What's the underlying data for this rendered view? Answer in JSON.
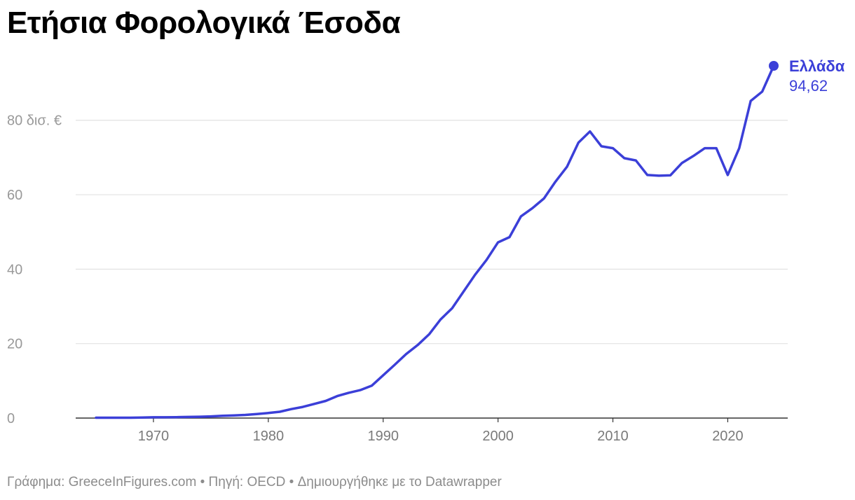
{
  "title": "Ετήσια Φορολογικά Έσοδα",
  "footer": {
    "chart_credit": "Γράφημα: GreeceInFigures.com",
    "sep": " • ",
    "source": "Πηγή: OECD",
    "made_with": "Δημιουργήθηκε με το Datawrapper"
  },
  "colors": {
    "line": "#3b3fd8",
    "grid": "#e2e2e2",
    "axis": "#333333",
    "tick_text": "#999999",
    "year_text": "#7a7a7a"
  },
  "chart_data": {
    "type": "line",
    "title": "Ετήσια Φορολογικά Έσοδα",
    "xlabel": "",
    "ylabel": "",
    "xlim": [
      1964,
      2024
    ],
    "ylim": [
      0,
      94.62
    ],
    "y_ticks": [
      0,
      20,
      40,
      60,
      80
    ],
    "y_tick_labels": [
      "0",
      "20",
      "40",
      "60",
      "80 δισ. €"
    ],
    "x_ticks": [
      1970,
      1980,
      1990,
      2000,
      2010,
      2020
    ],
    "x_tick_labels": [
      "1970",
      "1980",
      "1990",
      "2000",
      "2010",
      "2020"
    ],
    "grid": true,
    "series": [
      {
        "name": "Ελλάδα",
        "end_label": "94,62",
        "x": [
          1965,
          1966,
          1967,
          1968,
          1969,
          1970,
          1971,
          1972,
          1973,
          1974,
          1975,
          1976,
          1977,
          1978,
          1979,
          1980,
          1981,
          1982,
          1983,
          1984,
          1985,
          1986,
          1987,
          1988,
          1989,
          1990,
          1991,
          1992,
          1993,
          1994,
          1995,
          1996,
          1997,
          1998,
          1999,
          2000,
          2001,
          2002,
          2003,
          2004,
          2005,
          2006,
          2007,
          2008,
          2009,
          2010,
          2011,
          2012,
          2013,
          2014,
          2015,
          2016,
          2017,
          2018,
          2019,
          2020,
          2021,
          2022,
          2023,
          2024
        ],
        "y": [
          0.1,
          0.1,
          0.1,
          0.1,
          0.15,
          0.2,
          0.2,
          0.25,
          0.3,
          0.35,
          0.45,
          0.6,
          0.7,
          0.85,
          1.1,
          1.35,
          1.7,
          2.4,
          3.0,
          3.8,
          4.6,
          5.9,
          6.8,
          7.5,
          8.7,
          11.5,
          14.3,
          17.2,
          19.6,
          22.5,
          26.5,
          29.5,
          34.0,
          38.5,
          42.5,
          47.2,
          48.6,
          54.2,
          56.4,
          59.0,
          63.5,
          67.5,
          74.0,
          77.0,
          73.0,
          72.5,
          69.8,
          69.2,
          65.3,
          65.1,
          65.2,
          68.5,
          70.4,
          72.5,
          72.5,
          65.3,
          72.5,
          85.2,
          87.7,
          94.62
        ]
      }
    ]
  }
}
